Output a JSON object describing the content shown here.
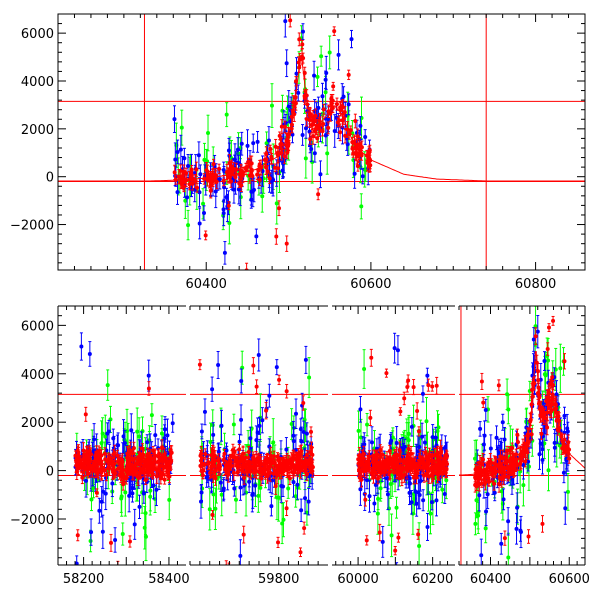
{
  "colors": {
    "red": "#ff0000",
    "green": "#00ff00",
    "blue": "#0000ff",
    "axis": "#000000"
  },
  "chart_data": [
    {
      "type": "scatter",
      "title": "",
      "xlabel": "",
      "ylabel": "",
      "xlim": [
        60220,
        60860
      ],
      "ylim": [
        -3900,
        6800
      ],
      "grid": false,
      "x_ticks": [
        60400,
        60600,
        60800
      ],
      "y_ticks": [
        -2000,
        0,
        2000,
        4000,
        6000
      ],
      "x_tick_labels": [
        "60400",
        "60600",
        "60800"
      ],
      "y_tick_labels": [
        "−2000",
        "0",
        "2000",
        "4000",
        "6000"
      ],
      "reference_lines": {
        "horizontal": [
          3150,
          -200
        ],
        "vertical": [
          60325,
          60740
        ]
      },
      "model_curve": {
        "color": "red",
        "x": [
          60220,
          60330,
          60360,
          60400,
          60430,
          60460,
          60490,
          60505,
          60515,
          60525,
          60535,
          60545,
          60555,
          60565,
          60580,
          60600,
          60640,
          60680,
          60740,
          60860
        ],
        "y": [
          -180,
          -180,
          -150,
          -60,
          80,
          300,
          900,
          2300,
          5200,
          2400,
          2100,
          2500,
          3000,
          2600,
          1300,
          700,
          100,
          -100,
          -180,
          -180
        ]
      },
      "series": [
        {
          "color": "red",
          "x_range": [
            60360,
            60600
          ],
          "count": 230
        },
        {
          "color": "green",
          "x_range": [
            60360,
            60600
          ],
          "count": 70
        },
        {
          "color": "blue",
          "x_range": [
            60360,
            60600
          ],
          "count": 150
        }
      ]
    },
    {
      "type": "scatter",
      "title": "",
      "xlabel": "",
      "ylabel": "",
      "broken_axis": true,
      "ylim": [
        -3900,
        6800
      ],
      "y_ticks": [
        -2000,
        0,
        2000,
        4000,
        6000
      ],
      "y_tick_labels": [
        "−2000",
        "0",
        "2000",
        "4000",
        "6000"
      ],
      "reference_lines": {
        "horizontal": [
          3150,
          -200
        ]
      },
      "segments": [
        {
          "xlim": [
            58140,
            58440
          ],
          "x_ticks": [
            58200,
            58300,
            58400
          ],
          "x_tick_labels": [
            "58200",
            "",
            "58400"
          ],
          "data_x_range": [
            58180,
            58410
          ],
          "vertical_lines": []
        },
        {
          "xlim": [
            59620,
            59900
          ],
          "x_ticks": [
            59800
          ],
          "x_tick_labels": [
            "59800"
          ],
          "data_x_range": [
            59640,
            59870
          ],
          "vertical_lines": []
        },
        {
          "xlim": [
            59930,
            60260
          ],
          "x_ticks": [
            60000,
            60100,
            60200
          ],
          "x_tick_labels": [
            "60000",
            "",
            "60200"
          ],
          "data_x_range": [
            60000,
            60240
          ],
          "vertical_lines": []
        },
        {
          "xlim": [
            60320,
            60640
          ],
          "x_ticks": [
            60400,
            60500,
            60600
          ],
          "x_tick_labels": [
            "60400",
            "",
            "60600"
          ],
          "data_x_range": [
            60360,
            60600
          ],
          "vertical_lines": [
            60325
          ]
        }
      ]
    }
  ]
}
